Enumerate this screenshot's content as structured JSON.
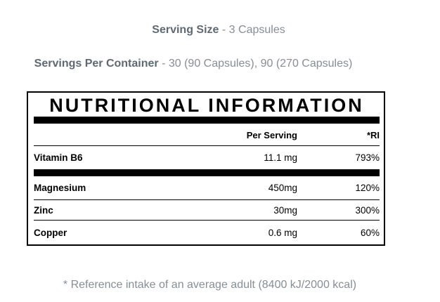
{
  "intro": {
    "serving_size": {
      "label": "Serving Size",
      "value": "- 3 Capsules"
    },
    "servings_per_container": {
      "label": "Servings Per Container",
      "value": "- 30 (90 Capsules), 90 (270 Capsules)"
    }
  },
  "table": {
    "title": "NUTRITIONAL INFORMATION",
    "columns": {
      "per_serving": "Per Serving",
      "ri": "*RI"
    },
    "rows": [
      {
        "name": "Vitamin B6",
        "per_serving": "11.1 mg",
        "ri": "793%"
      },
      {
        "name": "Magnesium",
        "per_serving": "450mg",
        "ri": "120%"
      },
      {
        "name": "Zinc",
        "per_serving": "30mg",
        "ri": "300%"
      },
      {
        "name": "Copper",
        "per_serving": "0.6 mg",
        "ri": "60%"
      }
    ]
  },
  "footnote": "* Reference intake of an average adult (8400 kJ/2000 kcal)",
  "colors": {
    "table_ink": "#000000",
    "muted_text": "#868e96",
    "muted_bold_text": "#5f6974",
    "background": "#ffffff"
  }
}
